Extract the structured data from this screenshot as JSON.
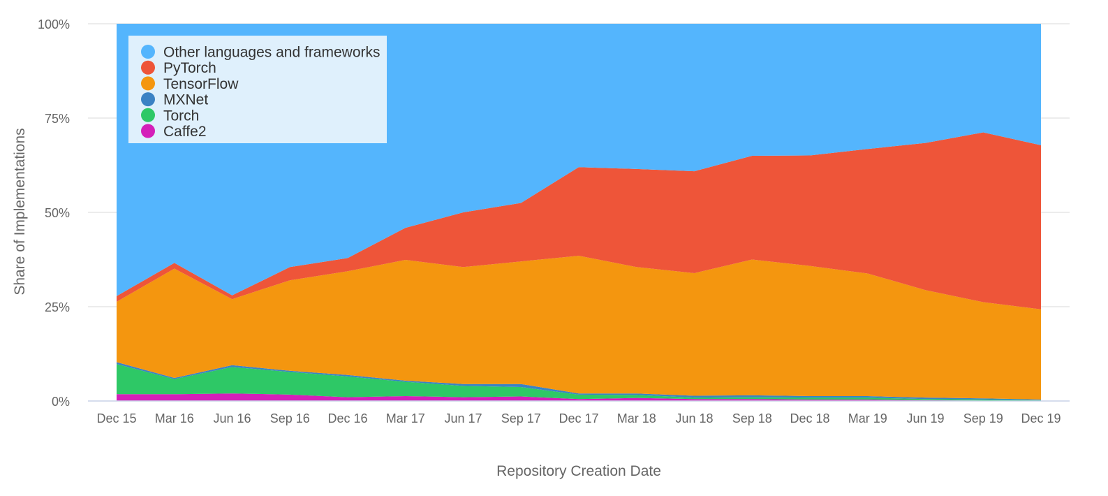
{
  "chart_data": {
    "type": "area",
    "stacked": true,
    "normalized": true,
    "xlabel": "Repository Creation Date",
    "ylabel": "Share of Implementations",
    "ylim": [
      0,
      100
    ],
    "y_ticks": [
      "0%",
      "25%",
      "50%",
      "75%",
      "100%"
    ],
    "categories": [
      "Dec 15",
      "Mar 16",
      "Jun 16",
      "Sep 16",
      "Dec 16",
      "Mar 17",
      "Jun 17",
      "Sep 17",
      "Dec 17",
      "Mar 18",
      "Jun 18",
      "Sep 18",
      "Dec 18",
      "Mar 19",
      "Jun 19",
      "Sep 19",
      "Dec 19"
    ],
    "legend_position": "top-left",
    "grid": true,
    "series": [
      {
        "name": "Caffe2",
        "color": "#d41fb9",
        "values": [
          1.8,
          1.8,
          2.0,
          1.7,
          1.0,
          1.3,
          1.0,
          1.2,
          0.5,
          0.8,
          0.5,
          0.5,
          0.4,
          0.4,
          0.2,
          0.1,
          0.1
        ]
      },
      {
        "name": "Torch",
        "color": "#2ec866",
        "values": [
          8.0,
          4.0,
          7.0,
          6.0,
          5.5,
          3.8,
          3.0,
          2.5,
          1.2,
          0.8,
          0.4,
          0.5,
          0.5,
          0.5,
          0.3,
          0.3,
          0.1
        ]
      },
      {
        "name": "MXNet",
        "color": "#3b82c4",
        "values": [
          0.5,
          0.3,
          0.5,
          0.3,
          0.4,
          0.3,
          0.5,
          0.8,
          0.3,
          0.4,
          0.5,
          0.5,
          0.4,
          0.4,
          0.4,
          0.3,
          0.2
        ]
      },
      {
        "name": "TensorFlow",
        "color": "#f4960f",
        "values": [
          16.0,
          29.0,
          17.5,
          24.0,
          27.5,
          32.0,
          31.0,
          32.5,
          36.5,
          33.5,
          32.5,
          36.0,
          34.5,
          32.5,
          28.5,
          25.5,
          23.9
        ]
      },
      {
        "name": "PyTorch",
        "color": "#ee5539",
        "values": [
          1.5,
          1.5,
          1.0,
          3.5,
          3.5,
          8.5,
          14.5,
          15.5,
          23.5,
          26.0,
          27.0,
          27.5,
          29.3,
          33.0,
          39.0,
          45.0,
          43.5
        ]
      },
      {
        "name": "Other languages and frameworks",
        "color": "#54b5fd",
        "values": [
          72.2,
          63.4,
          72.0,
          64.5,
          62.1,
          54.1,
          50.0,
          47.5,
          38.0,
          38.5,
          39.1,
          35.0,
          34.9,
          33.2,
          31.6,
          28.8,
          32.2
        ]
      }
    ],
    "legend_order": [
      "Other languages and frameworks",
      "PyTorch",
      "TensorFlow",
      "MXNet",
      "Torch",
      "Caffe2"
    ]
  }
}
